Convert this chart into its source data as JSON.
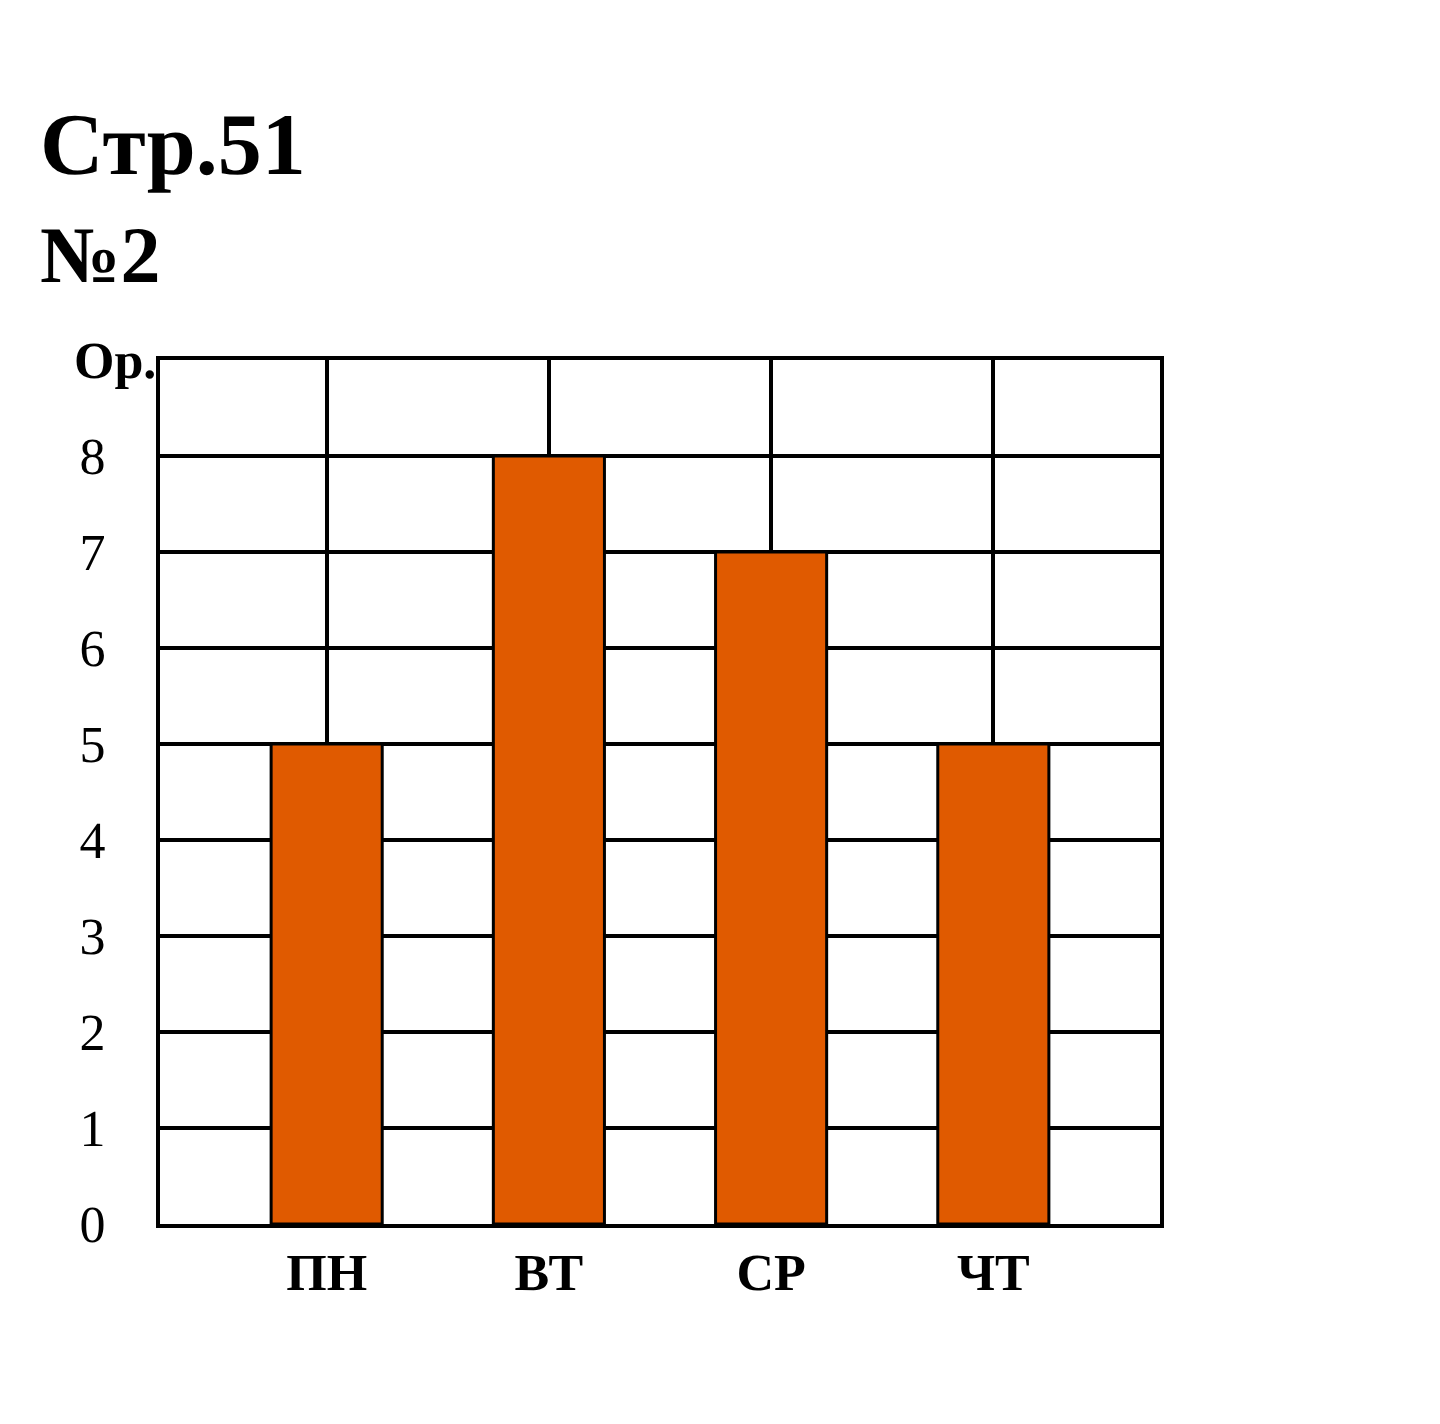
{
  "chart_data": {
    "type": "bar",
    "title": "Стр.51",
    "subtitle": "№2",
    "ylabel": "Ор.",
    "categories": [
      "ПН",
      "ВТ",
      "СР",
      "ЧТ"
    ],
    "values": [
      5,
      8,
      7,
      5
    ],
    "color": "#e05a00",
    "ylim": [
      0,
      9
    ],
    "yticks": [
      0,
      1,
      2,
      3,
      4,
      5,
      6,
      7,
      8
    ],
    "grid": true
  }
}
